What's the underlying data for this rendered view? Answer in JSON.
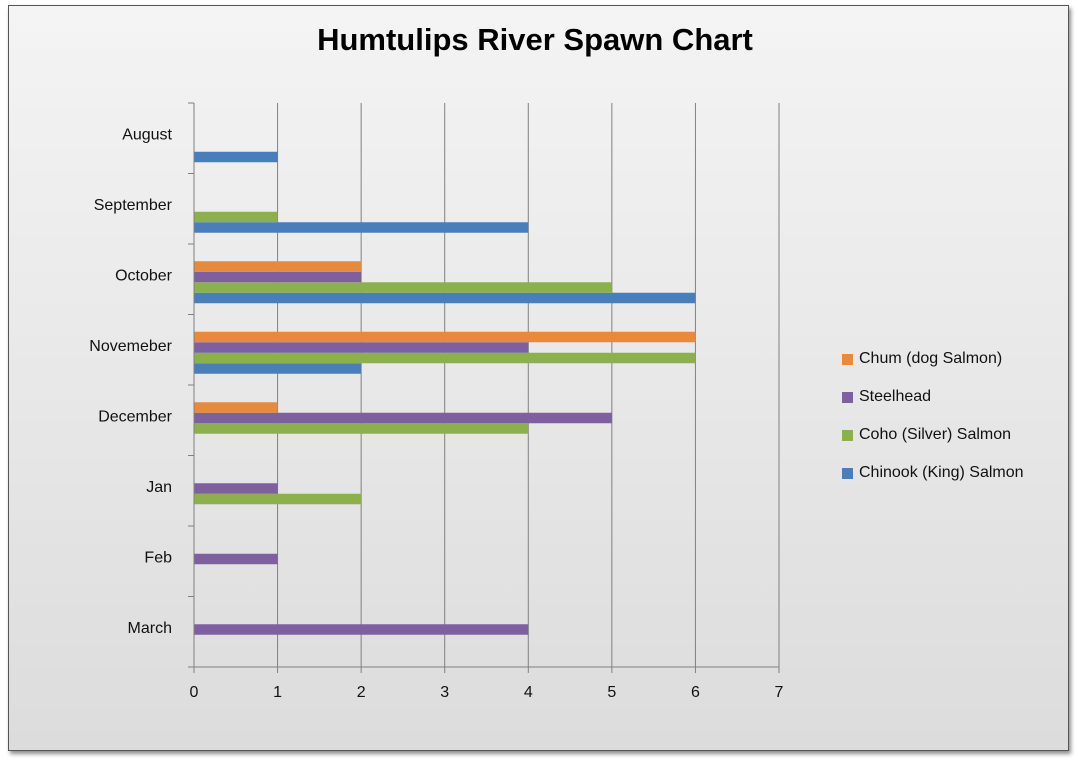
{
  "chart_data": {
    "type": "bar",
    "orientation": "horizontal",
    "title": "Humtulips River Spawn Chart",
    "categories": [
      "August",
      "September",
      "October",
      "Novemeber",
      "December",
      "Jan",
      "Feb",
      "March"
    ],
    "xlim": [
      0,
      7
    ],
    "x_ticks": [
      "0",
      "1",
      "2",
      "3",
      "4",
      "5",
      "6",
      "7"
    ],
    "grid": true,
    "legend_position": "right",
    "series": [
      {
        "name": "Chinook (King) Salmon",
        "color": "#4a7ebb",
        "values": [
          1,
          4,
          6,
          2,
          0,
          0,
          0,
          0
        ]
      },
      {
        "name": "Coho (Silver) Salmon",
        "color": "#8db04f",
        "values": [
          0,
          1,
          5,
          6,
          4,
          2,
          0,
          0
        ]
      },
      {
        "name": "Steelhead",
        "color": "#7e60a0",
        "values": [
          0,
          0,
          2,
          4,
          5,
          1,
          1,
          4
        ]
      },
      {
        "name": "Chum (dog Salmon)",
        "color": "#e58a3f",
        "values": [
          0,
          0,
          2,
          6,
          1,
          0,
          0,
          0
        ]
      }
    ]
  }
}
